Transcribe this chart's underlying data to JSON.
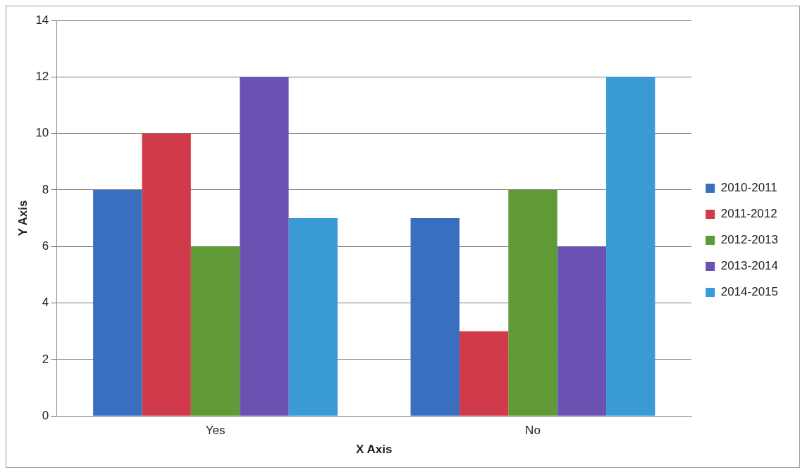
{
  "chart_data": {
    "type": "bar",
    "xlabel": "X Axis",
    "ylabel": "Y Axis",
    "categories": [
      "Yes",
      "No"
    ],
    "series": [
      {
        "name": "2010-2011",
        "color": "#3a6fc0",
        "values": [
          8,
          7
        ]
      },
      {
        "name": "2011-2012",
        "color": "#d13a4a",
        "values": [
          10,
          3
        ]
      },
      {
        "name": "2012-2013",
        "color": "#5f9a36",
        "values": [
          6,
          8
        ]
      },
      {
        "name": "2013-2014",
        "color": "#6a52b3",
        "values": [
          12,
          6
        ]
      },
      {
        "name": "2014-2015",
        "color": "#3a9ad6",
        "values": [
          7,
          12
        ]
      }
    ],
    "ylim": [
      0,
      14
    ],
    "yticks": [
      0,
      2,
      4,
      6,
      8,
      10,
      12,
      14
    ],
    "grid": "y",
    "legend": "right"
  }
}
